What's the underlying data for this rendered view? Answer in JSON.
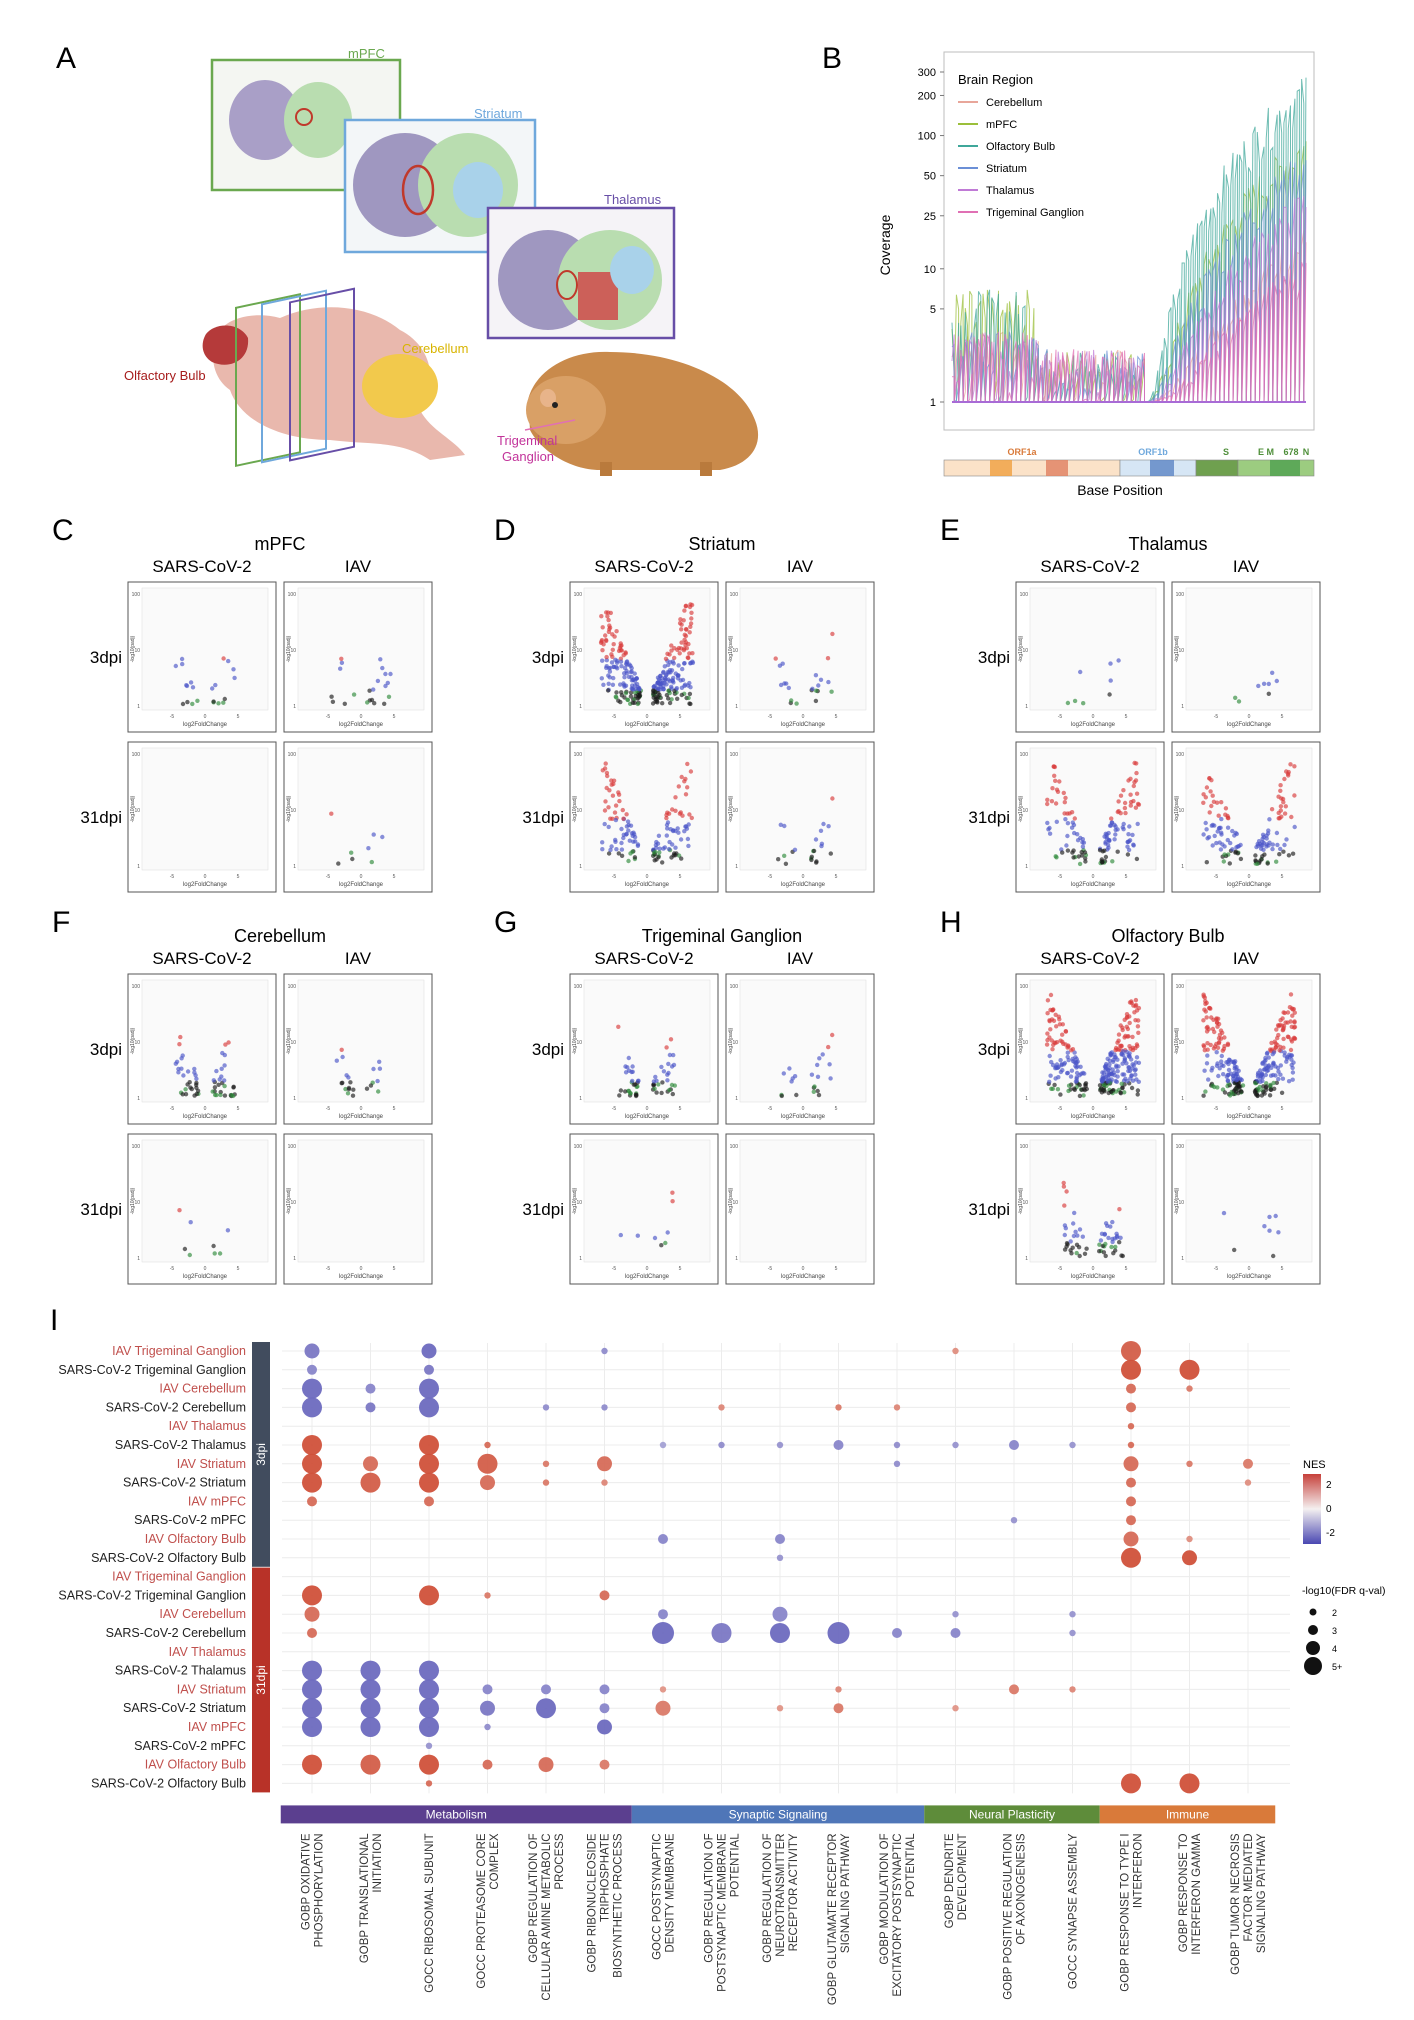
{
  "panel_letters": [
    "A",
    "B",
    "C",
    "D",
    "E",
    "F",
    "G",
    "H",
    "I"
  ],
  "panelA": {
    "slice_labels": [
      "mPFC",
      "Striatum",
      "Thalamus"
    ],
    "anatomy_labels": [
      "Olfactory Bulb",
      "Cerebellum",
      "Trigeminal Ganglion"
    ],
    "colors": {
      "mPFC": "#6aa84f",
      "Striatum": "#6fa8dc",
      "Thalamus": "#674ea7",
      "olfactory": "#a61c1c",
      "cerebellum": "#d8b400",
      "trigeminal": "#c2339a"
    }
  },
  "panelB": {
    "chart_data": {
      "type": "area",
      "xlabel": "Base Position",
      "ylabel": "Coverage",
      "y_ticks": [
        1,
        5,
        10,
        25,
        50,
        100,
        200,
        300
      ],
      "legend": {
        "title": "Brain Region",
        "placement": "top-left",
        "series": [
          {
            "name": "Cerebellum",
            "color": "#e8a69a"
          },
          {
            "name": "mPFC",
            "color": "#9bbf3a"
          },
          {
            "name": "Olfactory Bulb",
            "color": "#3fa79a"
          },
          {
            "name": "Striatum",
            "color": "#6b8fd6"
          },
          {
            "name": "Thalamus",
            "color": "#c07ad6"
          },
          {
            "name": "Trigeminal Ganglion",
            "color": "#e070b4"
          }
        ]
      },
      "genome_labels": [
        "ORF1a",
        "ORF1b",
        "S",
        "E M",
        "678",
        "N"
      ],
      "peak_coverage": [
        {
          "name": "Olfactory Bulb",
          "max": 290
        },
        {
          "name": "mPFC",
          "max": 110
        },
        {
          "name": "Striatum",
          "max": 80
        },
        {
          "name": "Thalamus",
          "max": 40
        },
        {
          "name": "Cerebellum",
          "max": 20
        },
        {
          "name": "Trigeminal Ganglion",
          "max": 12
        }
      ]
    }
  },
  "volcano": {
    "col_labels": [
      "SARS-CoV-2",
      "IAV"
    ],
    "row_labels": [
      "3dpi",
      "31dpi"
    ],
    "axis_x": "log2FoldChange",
    "axis_y": "-log10(padj)",
    "y_ticks": [
      "100",
      "10",
      "1"
    ],
    "x_ticks": [
      "-5",
      "0",
      "5"
    ],
    "panels": [
      {
        "letter": "C",
        "title": "mPFC",
        "density": [
          2,
          2,
          0,
          1
        ]
      },
      {
        "letter": "D",
        "title": "Striatum",
        "density": [
          5,
          2,
          4,
          2
        ]
      },
      {
        "letter": "E",
        "title": "Thalamus",
        "density": [
          1,
          1,
          4,
          4
        ]
      },
      {
        "letter": "F",
        "title": "Cerebellum",
        "density": [
          3,
          2,
          1,
          0
        ]
      },
      {
        "letter": "G",
        "title": "Trigeminal Ganglion",
        "density": [
          3,
          2,
          1,
          0
        ]
      },
      {
        "letter": "H",
        "title": "Olfactory Bulb",
        "density": [
          5,
          5,
          3,
          1
        ]
      }
    ]
  },
  "panelI": {
    "chart_data": {
      "type": "scatter",
      "row_labels": [
        "IAV Trigeminal Ganglion",
        "SARS-CoV-2 Trigeminal Ganglion",
        "IAV Cerebellum",
        "SARS-CoV-2 Cerebellum",
        "IAV Thalamus",
        "SARS-CoV-2 Thalamus",
        "IAV Striatum",
        "SARS-CoV-2 Striatum",
        "IAV mPFC",
        "SARS-CoV-2 mPFC",
        "IAV Olfactory Bulb",
        "SARS-CoV-2 Olfactory Bulb",
        "IAV Trigeminal Ganglion",
        "SARS-CoV-2 Trigeminal Ganglion",
        "IAV Cerebellum",
        "SARS-CoV-2 Cerebellum",
        "IAV Thalamus",
        "SARS-CoV-2 Thalamus",
        "IAV Striatum",
        "SARS-CoV-2 Striatum",
        "IAV mPFC",
        "SARS-CoV-2 mPFC",
        "IAV Olfactory Bulb",
        "SARS-CoV-2 Olfactory Bulb"
      ],
      "time_groups": [
        {
          "label": "3dpi",
          "color": "#414c5e"
        },
        {
          "label": "31dpi",
          "color": "#b83228"
        }
      ],
      "columns": [
        "GOBP OXIDATIVE PHOSPHORYLATION",
        "GOBP TRANSLATIONAL INITIATION",
        "GOCC RIBOSOMAL SUBUNIT",
        "GOCC PROTEASOME CORE COMPLEX",
        "GOBP REGULATION OF CELLULAR AMINE METABOLIC PROCESS",
        "GOBP RIBONUCLEOSIDE TRIPHOSPHATE BIOSYNTHETIC PROCESS",
        "GOCC POSTSYNAPTIC DENSITY MEMBRANE",
        "GOBP REGULATION OF POSTSYNAPTIC MEMBRANE POTENTIAL",
        "GOBP REGULATION OF NEUROTRANSMITTER RECEPTOR ACTIVITY",
        "GOBP GLUTAMATE RECEPTOR SIGNALING PATHWAY",
        "GOBP MODULATION OF EXCITATORY POSTSYNAPTIC POTENTIAL",
        "GOBP DENDRITE DEVELOPMENT",
        "GOBP POSITIVE REGULATION OF AXONOGENESIS",
        "GOCC SYNAPSE ASSEMBLY",
        "GOBP RESPONSE TO TYPE I INTERFERON",
        "GOBP RESPONSE TO INTERFERON GAMMA",
        "GOBP TUMOR NECROSIS FACTOR MEDIATED SIGNALING PATHWAY"
      ],
      "categories": [
        {
          "label": "Metabolism",
          "color": "#5b3f8f",
          "span": [
            0,
            5
          ]
        },
        {
          "label": "Synaptic Signaling",
          "color": "#4f76b8",
          "span": [
            6,
            10
          ]
        },
        {
          "label": "Neural Plasticity",
          "color": "#5e8c3a",
          "span": [
            11,
            13
          ]
        },
        {
          "label": "Immune",
          "color": "#d97a3a",
          "span": [
            14,
            16
          ]
        }
      ],
      "legend_nes": {
        "title": "NES",
        "ticks": [
          "2",
          "0",
          "-2"
        ]
      },
      "legend_size": {
        "title": "-log10(FDR q-val)",
        "ticks": [
          "2",
          "3",
          "4",
          "5+"
        ]
      },
      "points": [
        [
          0,
          0,
          -1.8,
          3
        ],
        [
          0,
          2,
          -2,
          3
        ],
        [
          0,
          5,
          -1.5,
          1
        ],
        [
          0,
          11,
          1.5,
          1
        ],
        [
          0,
          14,
          2.2,
          4
        ],
        [
          1,
          0,
          -1.6,
          2
        ],
        [
          1,
          2,
          -1.8,
          2
        ],
        [
          1,
          14,
          2.4,
          4
        ],
        [
          1,
          15,
          2.4,
          4
        ],
        [
          2,
          0,
          -2,
          4
        ],
        [
          2,
          1,
          -1.6,
          2
        ],
        [
          2,
          2,
          -2,
          4
        ],
        [
          2,
          14,
          2,
          2
        ],
        [
          2,
          15,
          1.8,
          1
        ],
        [
          3,
          0,
          -2,
          4
        ],
        [
          3,
          1,
          -1.8,
          2
        ],
        [
          3,
          2,
          -2,
          4
        ],
        [
          3,
          4,
          -1.5,
          1
        ],
        [
          3,
          5,
          -1.5,
          1
        ],
        [
          3,
          7,
          1.6,
          1
        ],
        [
          3,
          9,
          1.8,
          1
        ],
        [
          3,
          10,
          1.6,
          1
        ],
        [
          3,
          14,
          2,
          2
        ],
        [
          4,
          14,
          2,
          1
        ],
        [
          5,
          0,
          2.4,
          4
        ],
        [
          5,
          2,
          2.4,
          4
        ],
        [
          5,
          3,
          2,
          1
        ],
        [
          5,
          6,
          -1.2,
          1
        ],
        [
          5,
          7,
          -1.5,
          1
        ],
        [
          5,
          8,
          -1.4,
          1
        ],
        [
          5,
          9,
          -1.6,
          2
        ],
        [
          5,
          10,
          -1.5,
          1
        ],
        [
          5,
          11,
          -1.4,
          1
        ],
        [
          5,
          12,
          -1.6,
          2
        ],
        [
          5,
          13,
          -1.4,
          1
        ],
        [
          5,
          14,
          2,
          1
        ],
        [
          6,
          0,
          2.4,
          4
        ],
        [
          6,
          1,
          2,
          3
        ],
        [
          6,
          2,
          2.4,
          4
        ],
        [
          6,
          3,
          2.2,
          4
        ],
        [
          6,
          4,
          1.8,
          1
        ],
        [
          6,
          5,
          2,
          3
        ],
        [
          6,
          10,
          -1.5,
          1
        ],
        [
          6,
          14,
          2,
          3
        ],
        [
          6,
          15,
          1.8,
          1
        ],
        [
          6,
          16,
          1.8,
          2
        ],
        [
          7,
          0,
          2.4,
          4
        ],
        [
          7,
          1,
          2.2,
          4
        ],
        [
          7,
          2,
          2.4,
          4
        ],
        [
          7,
          3,
          2,
          3
        ],
        [
          7,
          4,
          1.8,
          1
        ],
        [
          7,
          5,
          1.6,
          1
        ],
        [
          7,
          14,
          2,
          2
        ],
        [
          7,
          16,
          1.5,
          1
        ],
        [
          8,
          0,
          2,
          2
        ],
        [
          8,
          2,
          2,
          2
        ],
        [
          8,
          14,
          2,
          2
        ],
        [
          9,
          12,
          -1.4,
          1
        ],
        [
          9,
          14,
          2,
          2
        ],
        [
          10,
          6,
          -1.6,
          2
        ],
        [
          10,
          8,
          -1.6,
          2
        ],
        [
          10,
          14,
          2,
          3
        ],
        [
          10,
          15,
          1.5,
          1
        ],
        [
          11,
          8,
          -1.4,
          1
        ],
        [
          11,
          14,
          2.4,
          4
        ],
        [
          11,
          15,
          2.4,
          3
        ],
        [
          13,
          0,
          2.4,
          4
        ],
        [
          13,
          2,
          2.4,
          4
        ],
        [
          13,
          3,
          1.8,
          1
        ],
        [
          13,
          5,
          2,
          2
        ],
        [
          14,
          0,
          2,
          3
        ],
        [
          14,
          6,
          -1.6,
          2
        ],
        [
          14,
          8,
          -1.6,
          3
        ],
        [
          14,
          11,
          -1.4,
          1
        ],
        [
          14,
          13,
          -1.4,
          1
        ],
        [
          15,
          0,
          2,
          2
        ],
        [
          15,
          6,
          -2,
          5
        ],
        [
          15,
          7,
          -1.8,
          4
        ],
        [
          15,
          8,
          -2,
          4
        ],
        [
          15,
          9,
          -2,
          5
        ],
        [
          15,
          10,
          -1.6,
          2
        ],
        [
          15,
          11,
          -1.6,
          2
        ],
        [
          15,
          13,
          -1.4,
          1
        ],
        [
          17,
          0,
          -2,
          4
        ],
        [
          17,
          1,
          -2,
          4
        ],
        [
          17,
          2,
          -2,
          4
        ],
        [
          18,
          0,
          -2,
          4
        ],
        [
          18,
          1,
          -2,
          4
        ],
        [
          18,
          2,
          -2,
          4
        ],
        [
          18,
          3,
          -1.6,
          2
        ],
        [
          18,
          4,
          -1.6,
          2
        ],
        [
          18,
          5,
          -1.6,
          2
        ],
        [
          18,
          6,
          1.4,
          1
        ],
        [
          18,
          9,
          1.6,
          1
        ],
        [
          18,
          12,
          1.8,
          2
        ],
        [
          18,
          13,
          1.6,
          1
        ],
        [
          19,
          0,
          -2,
          4
        ],
        [
          19,
          1,
          -2,
          4
        ],
        [
          19,
          2,
          -2,
          4
        ],
        [
          19,
          3,
          -1.8,
          3
        ],
        [
          19,
          4,
          -2,
          4
        ],
        [
          19,
          5,
          -1.6,
          2
        ],
        [
          19,
          6,
          1.8,
          3
        ],
        [
          19,
          8,
          1.4,
          1
        ],
        [
          19,
          9,
          1.8,
          2
        ],
        [
          19,
          11,
          1.4,
          1
        ],
        [
          20,
          0,
          -2,
          4
        ],
        [
          20,
          1,
          -2,
          4
        ],
        [
          20,
          2,
          -2,
          4
        ],
        [
          20,
          3,
          -1.5,
          1
        ],
        [
          20,
          5,
          -2,
          3
        ],
        [
          21,
          2,
          -1.4,
          1
        ],
        [
          22,
          0,
          2.4,
          4
        ],
        [
          22,
          1,
          2.2,
          4
        ],
        [
          22,
          2,
          2.4,
          4
        ],
        [
          22,
          3,
          2,
          2
        ],
        [
          22,
          4,
          2,
          3
        ],
        [
          22,
          5,
          1.8,
          2
        ],
        [
          23,
          2,
          2,
          1
        ],
        [
          23,
          14,
          2.4,
          4
        ],
        [
          23,
          15,
          2.4,
          4
        ]
      ]
    }
  }
}
